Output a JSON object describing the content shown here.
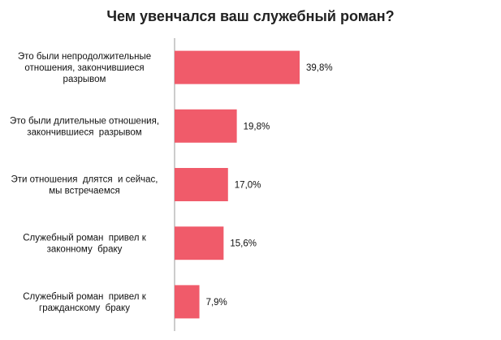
{
  "chart_data": {
    "type": "bar",
    "orientation": "horizontal",
    "title": "Чем увенчался ваш служебный роман?",
    "categories": [
      [
        "Это были непродолжительные",
        "отношения, закончившиеся",
        "разрывом"
      ],
      [
        "Это были длительные отношения,",
        "закончившиеся  разрывом"
      ],
      [
        "Эти отношения  длятся  и сейчас,",
        "мы встречаемся"
      ],
      [
        "Служебный роман  привел к",
        "законному  браку"
      ],
      [
        "Служебный роман  привел к",
        "гражданскому  браку"
      ]
    ],
    "values": [
      39.8,
      19.8,
      17.0,
      15.6,
      7.9
    ],
    "value_labels": [
      "39,8%",
      "19,8%",
      "17,0%",
      "15,6%",
      "7,9%"
    ],
    "xlim": [
      0,
      100
    ],
    "grid": false,
    "legend": "none",
    "colors": {
      "bar": "#f05b6a",
      "axis": "#999999"
    }
  }
}
